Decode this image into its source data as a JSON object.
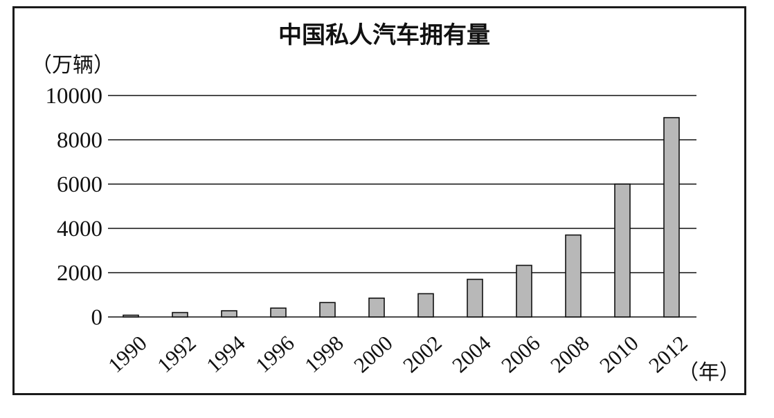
{
  "chart_data": {
    "type": "bar",
    "title": "中国私人汽车拥有量",
    "ylabel": "（万辆）",
    "xlabel": "（年）",
    "categories": [
      "1990",
      "1992",
      "1994",
      "1996",
      "1998",
      "2000",
      "2002",
      "2004",
      "2006",
      "2008",
      "2010",
      "2012"
    ],
    "values": [
      80,
      200,
      280,
      400,
      650,
      850,
      1050,
      1700,
      2330,
      3700,
      6000,
      9000
    ],
    "ylim": [
      0,
      10000
    ],
    "yticks": [
      "0",
      "2000",
      "4000",
      "6000",
      "8000",
      "10000"
    ],
    "grid": true,
    "colors": {
      "bar": "#b8b8b8",
      "line": "#111111"
    }
  }
}
